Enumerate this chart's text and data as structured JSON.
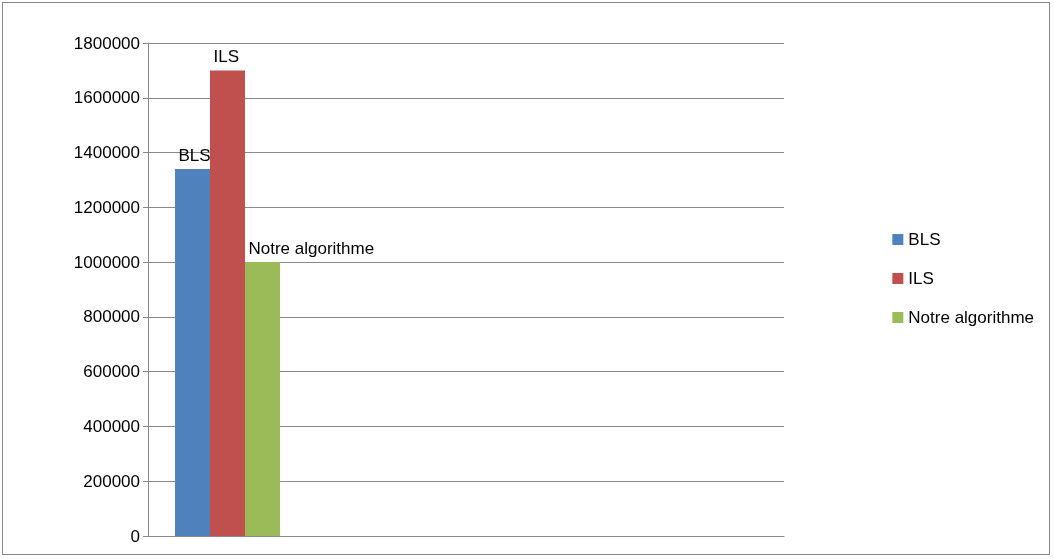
{
  "chart_data": {
    "type": "bar",
    "categories": [
      null,
      null,
      null,
      null
    ],
    "series": [
      {
        "name": "BLS",
        "color": "#4f81bd",
        "values": [
          1340000,
          null,
          null,
          null
        ]
      },
      {
        "name": "ILS",
        "color": "#c0504d",
        "values": [
          1700000,
          null,
          null,
          null
        ]
      },
      {
        "name": "Notre algorithme",
        "color": "#9bbb59",
        "values": [
          1000000,
          null,
          null,
          null
        ]
      }
    ],
    "ylim": [
      0,
      1800000
    ],
    "yticks": [
      0,
      200000,
      400000,
      600000,
      800000,
      1000000,
      1200000,
      1400000,
      1600000,
      1800000
    ],
    "grid": "y",
    "legend": "right"
  }
}
